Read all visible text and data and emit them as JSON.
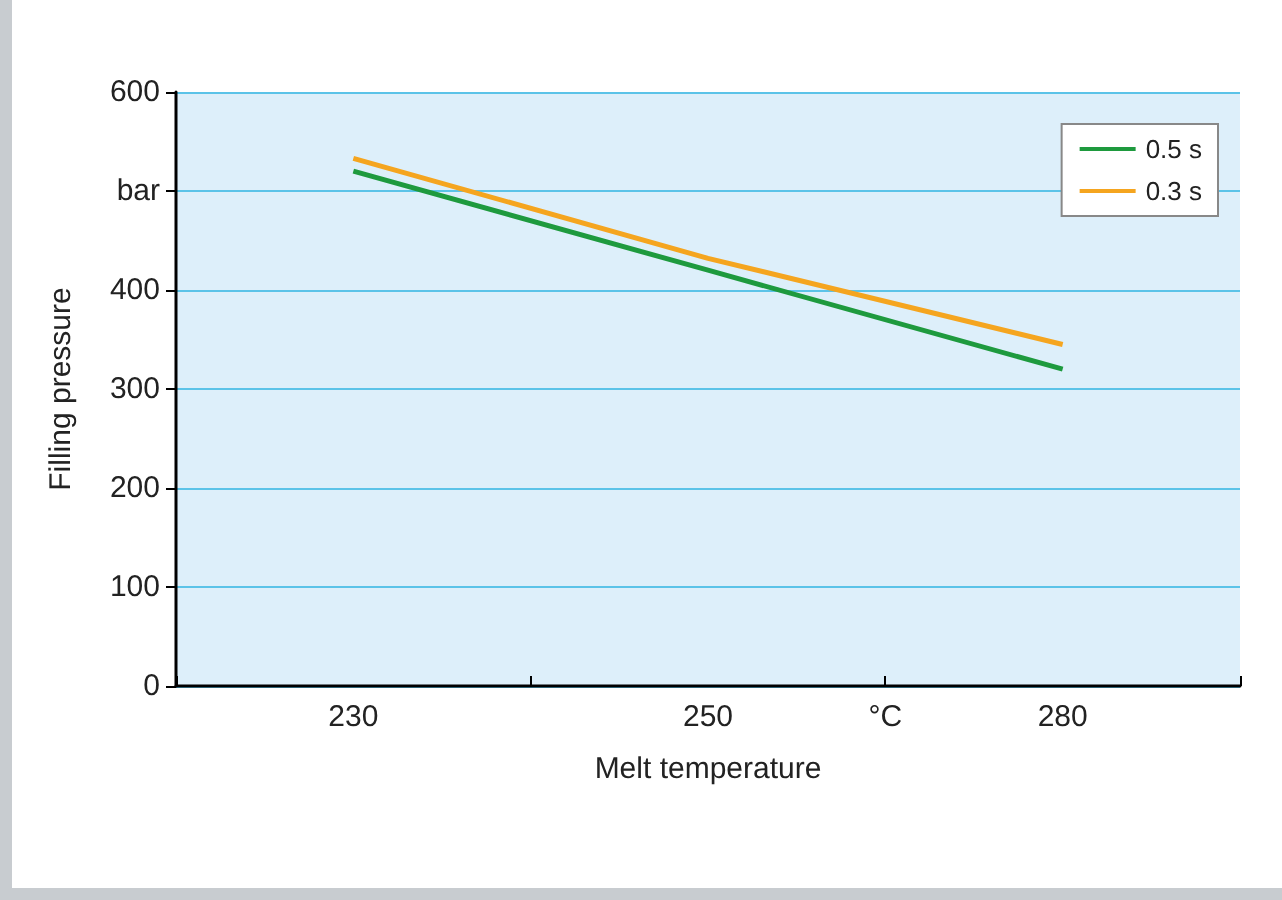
{
  "chart_data": {
    "type": "line",
    "xlabel": "Melt temperature",
    "ylabel": "Filling pressure",
    "categories": [
      "230",
      "250",
      "280"
    ],
    "series": [
      {
        "name": "0.5 s",
        "color": "#1e9a3e",
        "values": [
          520,
          420,
          320
        ]
      },
      {
        "name": "0.3 s",
        "color": "#f5a51f",
        "values": [
          533,
          432,
          345
        ]
      }
    ],
    "ylim": [
      0,
      600
    ],
    "yticks": [
      0,
      100,
      200,
      300,
      400,
      {
        "value": 500,
        "label": "bar"
      },
      600
    ],
    "annotations": [
      "°C"
    ],
    "grid": "y",
    "legend": "top right",
    "marker": "none",
    "line_style": "solid"
  }
}
